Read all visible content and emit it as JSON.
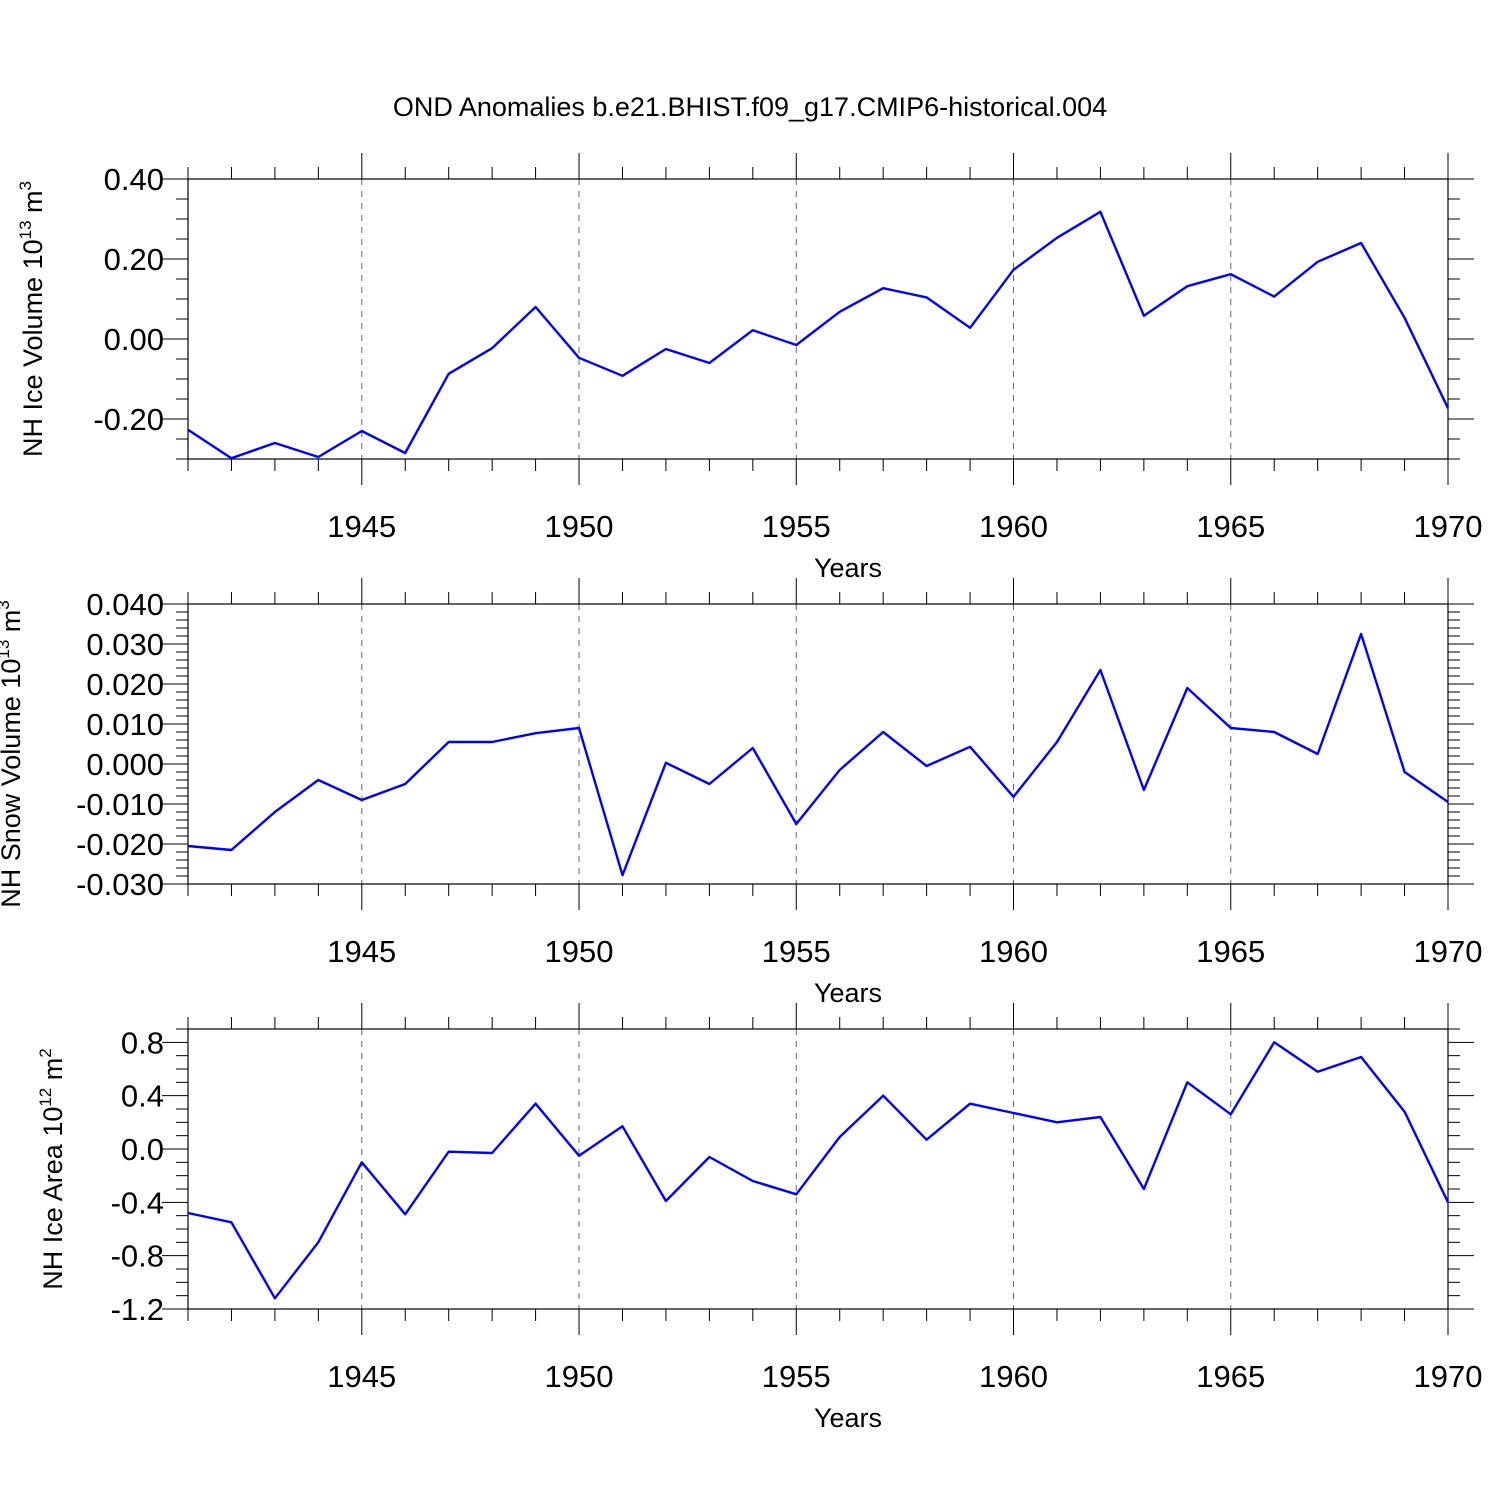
{
  "title": "OND Anomalies b.e21.BHIST.f09_g17.CMIP6-historical.004",
  "colors": {
    "line": "#0000ff"
  },
  "chart_data": [
    {
      "type": "line",
      "title": "OND Anomalies b.e21.BHIST.f09_g17.CMIP6-historical.004",
      "xlabel": "Years",
      "ylabel_main": "NH Ice Volume 10",
      "ylabel_sup": "13",
      "ylabel_unit": " m",
      "ylabel_unit_sup": "3",
      "xlim": [
        1941,
        1970
      ],
      "ylim": [
        -0.3,
        0.4
      ],
      "xticks": [
        1945,
        1950,
        1955,
        1960,
        1965,
        1970
      ],
      "xtick_labels": [
        "1945",
        "1950",
        "1955",
        "1960",
        "1965",
        "1970"
      ],
      "yticks": [
        -0.2,
        0.0,
        0.2,
        0.4
      ],
      "ytick_labels": [
        "-0.20",
        "0.00",
        "0.20",
        "0.40"
      ],
      "y_minor_step": 0.05,
      "grid": "x-dashed",
      "series": [
        {
          "name": "NH Ice Volume",
          "x": [
            1941,
            1942,
            1943,
            1944,
            1945,
            1946,
            1947,
            1948,
            1949,
            1950,
            1951,
            1952,
            1953,
            1954,
            1955,
            1956,
            1957,
            1958,
            1959,
            1960,
            1961,
            1962,
            1963,
            1964,
            1965,
            1966,
            1967,
            1968,
            1969,
            1970
          ],
          "values": [
            -0.227,
            -0.298,
            -0.26,
            -0.295,
            -0.23,
            -0.285,
            -0.087,
            -0.023,
            0.08,
            -0.047,
            -0.092,
            -0.025,
            -0.06,
            0.022,
            -0.015,
            0.068,
            0.127,
            0.104,
            0.028,
            0.173,
            0.253,
            0.318,
            0.058,
            0.132,
            0.162,
            0.106,
            0.193,
            0.24,
            0.053,
            -0.173
          ]
        }
      ]
    },
    {
      "type": "line",
      "title": "",
      "xlabel": "Years",
      "ylabel_main": "NH Snow Volume 10",
      "ylabel_sup": "13",
      "ylabel_unit": " m",
      "ylabel_unit_sup": "3",
      "xlim": [
        1941,
        1970
      ],
      "ylim": [
        -0.03,
        0.04
      ],
      "xticks": [
        1945,
        1950,
        1955,
        1960,
        1965,
        1970
      ],
      "xtick_labels": [
        "1945",
        "1950",
        "1955",
        "1960",
        "1965",
        "1970"
      ],
      "yticks": [
        -0.03,
        -0.02,
        -0.01,
        0.0,
        0.01,
        0.02,
        0.03,
        0.04
      ],
      "ytick_labels": [
        "-0.030",
        "-0.020",
        "-0.010",
        "0.000",
        "0.010",
        "0.020",
        "0.030",
        "0.040"
      ],
      "y_minor_step": 0.002,
      "grid": "x-dashed",
      "series": [
        {
          "name": "NH Snow Volume",
          "x": [
            1941,
            1942,
            1943,
            1944,
            1945,
            1946,
            1947,
            1948,
            1949,
            1950,
            1951,
            1952,
            1953,
            1954,
            1955,
            1956,
            1957,
            1958,
            1959,
            1960,
            1961,
            1962,
            1963,
            1964,
            1965,
            1966,
            1967,
            1968,
            1969,
            1970
          ],
          "values": [
            -0.0205,
            -0.0215,
            -0.012,
            -0.004,
            -0.009,
            -0.005,
            0.0055,
            0.0055,
            0.0077,
            0.009,
            -0.0278,
            0.0003,
            -0.005,
            0.004,
            -0.015,
            -0.0015,
            0.008,
            -0.0005,
            0.0043,
            -0.0082,
            0.0055,
            0.0235,
            -0.0065,
            0.019,
            0.009,
            0.008,
            0.0025,
            0.0325,
            -0.002,
            -0.0095
          ]
        }
      ]
    },
    {
      "type": "line",
      "title": "",
      "xlabel": "Years",
      "ylabel_main": "NH Ice Area 10",
      "ylabel_sup": "12",
      "ylabel_unit": " m",
      "ylabel_unit_sup": "2",
      "xlim": [
        1941,
        1970
      ],
      "ylim": [
        -1.2,
        0.9
      ],
      "xticks": [
        1945,
        1950,
        1955,
        1960,
        1965,
        1970
      ],
      "xtick_labels": [
        "1945",
        "1950",
        "1955",
        "1960",
        "1965",
        "1970"
      ],
      "yticks": [
        -1.2,
        -0.8,
        -0.4,
        0.0,
        0.4,
        0.8
      ],
      "ytick_labels": [
        "-1.2",
        "-0.8",
        "-0.4",
        "0.0",
        "0.4",
        "0.8"
      ],
      "y_minor_step": 0.1,
      "grid": "x-dashed",
      "series": [
        {
          "name": "NH Ice Area",
          "x": [
            1941,
            1942,
            1943,
            1944,
            1945,
            1946,
            1947,
            1948,
            1949,
            1950,
            1951,
            1952,
            1953,
            1954,
            1955,
            1956,
            1957,
            1958,
            1959,
            1960,
            1961,
            1962,
            1963,
            1964,
            1965,
            1966,
            1967,
            1968,
            1969,
            1970
          ],
          "values": [
            -0.48,
            -0.55,
            -1.12,
            -0.7,
            -0.1,
            -0.49,
            -0.02,
            -0.03,
            0.34,
            -0.05,
            0.17,
            -0.39,
            -0.06,
            -0.24,
            -0.34,
            0.09,
            0.4,
            0.07,
            0.34,
            0.27,
            0.2,
            0.24,
            -0.3,
            0.5,
            0.26,
            0.8,
            0.58,
            0.69,
            0.28,
            -0.4
          ]
        }
      ]
    }
  ]
}
